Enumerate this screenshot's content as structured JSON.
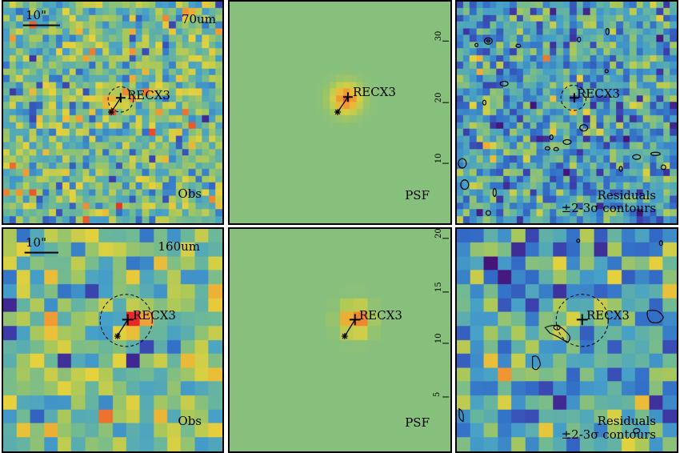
{
  "figure": {
    "source_name": "RECX3",
    "rows": [
      {
        "band": "70um",
        "scale_bar_label": "10\"",
        "panels": [
          {
            "key": "obs",
            "label": "Obs",
            "kind": "obs"
          },
          {
            "key": "psf",
            "label": "PSF",
            "kind": "psf"
          },
          {
            "key": "res",
            "label_line1": "Residuals",
            "label_line2": "±2-3σ contours",
            "kind": "res"
          }
        ]
      },
      {
        "band": "160um",
        "scale_bar_label": "10\"",
        "panels": [
          {
            "key": "obs",
            "label": "Obs",
            "kind": "obs"
          },
          {
            "key": "psf",
            "label": "PSF",
            "kind": "psf"
          },
          {
            "key": "res",
            "label_line1": "Residuals",
            "label_line2": "±2-3σ contours",
            "kind": "res"
          }
        ]
      }
    ],
    "psf_axis_ticks_row1": [
      "30",
      "20",
      "10"
    ],
    "psf_axis_ticks_row2": [
      "20",
      "15",
      "10",
      "5"
    ]
  }
}
